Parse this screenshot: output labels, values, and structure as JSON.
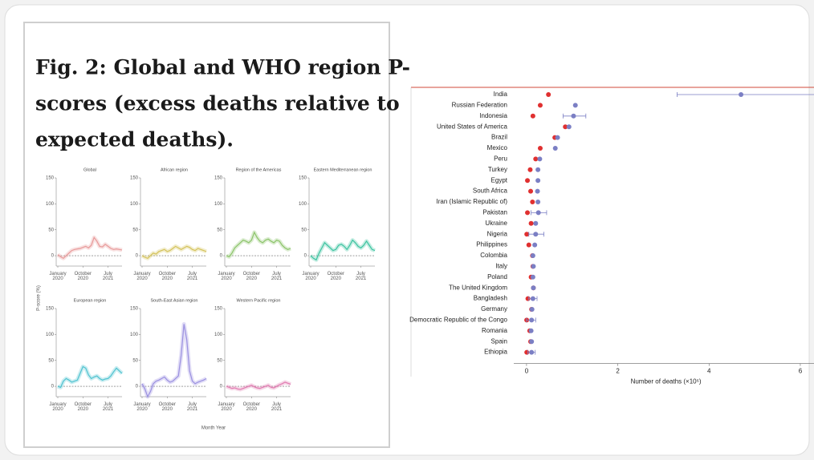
{
  "figure_title": [
    "Fig. 2: Global and WHO region P-",
    "scores (excess deaths relative to",
    "expected deaths)."
  ],
  "figure_ylabel": "P-score (%)",
  "figure_xlabel": "Month Year",
  "chart_data": [
    {
      "type": "line",
      "title": "Global",
      "color": "#e89a9a",
      "x": [
        "2020-01",
        "2020-02",
        "2020-03",
        "2020-04",
        "2020-05",
        "2020-06",
        "2020-07",
        "2020-08",
        "2020-09",
        "2020-10",
        "2020-11",
        "2020-12",
        "2021-01",
        "2021-02",
        "2021-03",
        "2021-04",
        "2021-05",
        "2021-06",
        "2021-07",
        "2021-08",
        "2021-09",
        "2021-10",
        "2021-11",
        "2021-12"
      ],
      "values": [
        2,
        -2,
        -5,
        0,
        5,
        10,
        12,
        13,
        14,
        16,
        18,
        15,
        20,
        35,
        28,
        18,
        17,
        22,
        18,
        14,
        12,
        13,
        12,
        11
      ],
      "ylim": [
        -20,
        150
      ],
      "yticks": [
        0,
        50,
        100,
        150
      ],
      "xticks": [
        {
          "value": "2020-01",
          "label": "January 2020"
        },
        {
          "value": "2020-10",
          "label": "October 2020"
        },
        {
          "value": "2021-07",
          "label": "July 2021"
        }
      ]
    },
    {
      "type": "line",
      "title": "African region",
      "color": "#d4c25a",
      "x": [
        "2020-01",
        "2020-02",
        "2020-03",
        "2020-04",
        "2020-05",
        "2020-06",
        "2020-07",
        "2020-08",
        "2020-09",
        "2020-10",
        "2020-11",
        "2020-12",
        "2021-01",
        "2021-02",
        "2021-03",
        "2021-04",
        "2021-05",
        "2021-06",
        "2021-07",
        "2021-08",
        "2021-09",
        "2021-10",
        "2021-11",
        "2021-12"
      ],
      "values": [
        0,
        -3,
        -5,
        0,
        5,
        3,
        8,
        10,
        12,
        8,
        10,
        14,
        18,
        15,
        12,
        15,
        18,
        16,
        12,
        10,
        14,
        12,
        10,
        8
      ],
      "ylim": [
        -20,
        150
      ],
      "yticks": [
        0,
        50,
        100,
        150
      ],
      "xticks": [
        {
          "value": "2020-01",
          "label": "January 2020"
        },
        {
          "value": "2020-10",
          "label": "October 2020"
        },
        {
          "value": "2021-07",
          "label": "July 2021"
        }
      ]
    },
    {
      "type": "line",
      "title": "Region of the Americas",
      "color": "#8cc46a",
      "x": [
        "2020-01",
        "2020-02",
        "2020-03",
        "2020-04",
        "2020-05",
        "2020-06",
        "2020-07",
        "2020-08",
        "2020-09",
        "2020-10",
        "2020-11",
        "2020-12",
        "2021-01",
        "2021-02",
        "2021-03",
        "2021-04",
        "2021-05",
        "2021-06",
        "2021-07",
        "2021-08",
        "2021-09",
        "2021-10",
        "2021-11",
        "2021-12"
      ],
      "values": [
        0,
        -2,
        5,
        15,
        20,
        25,
        30,
        28,
        25,
        30,
        45,
        35,
        28,
        25,
        30,
        32,
        28,
        25,
        30,
        28,
        20,
        15,
        12,
        14
      ],
      "ylim": [
        -20,
        150
      ],
      "yticks": [
        0,
        50,
        100,
        150
      ],
      "xticks": [
        {
          "value": "2020-01",
          "label": "January 2020"
        },
        {
          "value": "2020-10",
          "label": "October 2020"
        },
        {
          "value": "2021-07",
          "label": "July 2021"
        }
      ]
    },
    {
      "type": "line",
      "title": "Eastern Mediterranean region",
      "color": "#3cc3a0",
      "x": [
        "2020-01",
        "2020-02",
        "2020-03",
        "2020-04",
        "2020-05",
        "2020-06",
        "2020-07",
        "2020-08",
        "2020-09",
        "2020-10",
        "2020-11",
        "2020-12",
        "2021-01",
        "2021-02",
        "2021-03",
        "2021-04",
        "2021-05",
        "2021-06",
        "2021-07",
        "2021-08",
        "2021-09",
        "2021-10",
        "2021-11",
        "2021-12"
      ],
      "values": [
        0,
        -5,
        -8,
        5,
        15,
        25,
        20,
        15,
        10,
        12,
        20,
        22,
        18,
        12,
        20,
        30,
        25,
        18,
        15,
        20,
        28,
        20,
        12,
        10
      ],
      "ylim": [
        -20,
        150
      ],
      "yticks": [
        0,
        50,
        100,
        150
      ],
      "xticks": [
        {
          "value": "2020-01",
          "label": "January 2020"
        },
        {
          "value": "2020-10",
          "label": "October 2020"
        },
        {
          "value": "2021-07",
          "label": "July 2021"
        }
      ]
    },
    {
      "type": "line",
      "title": "European region",
      "color": "#4fc3d0",
      "x": [
        "2020-01",
        "2020-02",
        "2020-03",
        "2020-04",
        "2020-05",
        "2020-06",
        "2020-07",
        "2020-08",
        "2020-09",
        "2020-10",
        "2020-11",
        "2020-12",
        "2021-01",
        "2021-02",
        "2021-03",
        "2021-04",
        "2021-05",
        "2021-06",
        "2021-07",
        "2021-08",
        "2021-09",
        "2021-10",
        "2021-11",
        "2021-12"
      ],
      "values": [
        0,
        -2,
        10,
        15,
        12,
        8,
        10,
        12,
        25,
        38,
        35,
        22,
        15,
        18,
        20,
        15,
        12,
        14,
        15,
        20,
        28,
        35,
        30,
        25
      ],
      "ylim": [
        -20,
        150
      ],
      "yticks": [
        0,
        50,
        100,
        150
      ],
      "xticks": [
        {
          "value": "2020-01",
          "label": "January 2020"
        },
        {
          "value": "2020-10",
          "label": "October 2020"
        },
        {
          "value": "2021-07",
          "label": "July 2021"
        }
      ]
    },
    {
      "type": "line",
      "title": "South-East Asian region",
      "color": "#9a90e0",
      "x": [
        "2020-01",
        "2020-02",
        "2020-03",
        "2020-04",
        "2020-05",
        "2020-06",
        "2020-07",
        "2020-08",
        "2020-09",
        "2020-10",
        "2020-11",
        "2020-12",
        "2021-01",
        "2021-02",
        "2021-03",
        "2021-04",
        "2021-05",
        "2021-06",
        "2021-07",
        "2021-08",
        "2021-09",
        "2021-10",
        "2021-11",
        "2021-12"
      ],
      "values": [
        5,
        -5,
        -20,
        -10,
        5,
        10,
        12,
        15,
        18,
        12,
        8,
        10,
        15,
        20,
        60,
        120,
        90,
        30,
        10,
        5,
        8,
        10,
        12,
        15
      ],
      "ylim": [
        -20,
        150
      ],
      "yticks": [
        0,
        50,
        100,
        150
      ],
      "xticks": [
        {
          "value": "2020-01",
          "label": "January 2020"
        },
        {
          "value": "2020-10",
          "label": "October 2020"
        },
        {
          "value": "2021-07",
          "label": "July 2021"
        }
      ]
    },
    {
      "type": "line",
      "title": "Western Pacific region",
      "color": "#e07ab0",
      "x": [
        "2020-01",
        "2020-02",
        "2020-03",
        "2020-04",
        "2020-05",
        "2020-06",
        "2020-07",
        "2020-08",
        "2020-09",
        "2020-10",
        "2020-11",
        "2020-12",
        "2021-01",
        "2021-02",
        "2021-03",
        "2021-04",
        "2021-05",
        "2021-06",
        "2021-07",
        "2021-08",
        "2021-09",
        "2021-10",
        "2021-11",
        "2021-12"
      ],
      "values": [
        0,
        -2,
        -4,
        -3,
        -5,
        -6,
        -4,
        -2,
        0,
        2,
        -1,
        -3,
        -4,
        -2,
        0,
        2,
        -2,
        -3,
        0,
        3,
        5,
        8,
        6,
        4
      ],
      "ylim": [
        -20,
        150
      ],
      "yticks": [
        0,
        50,
        100,
        150
      ],
      "xticks": [
        {
          "value": "2020-01",
          "label": "January 2020"
        },
        {
          "value": "2020-10",
          "label": "October 2020"
        },
        {
          "value": "2021-07",
          "label": "July 2021"
        }
      ]
    },
    {
      "type": "dot",
      "categories": [
        "India",
        "Russian Federation",
        "Indonesia",
        "United States of America",
        "Brazil",
        "Mexico",
        "Peru",
        "Turkey",
        "Egypt",
        "South Africa",
        "Iran (Islamic Republic of)",
        "Pakistan",
        "Ukraine",
        "Nigeria",
        "Philippines",
        "Colombia",
        "Italy",
        "Poland",
        "The United Kingdom",
        "Bangladesh",
        "Germany",
        "Democratic Republic of the Congo",
        "Romania",
        "Spain",
        "Ethiopia"
      ],
      "series": [
        {
          "color": "#e03030",
          "values": [
            0.48,
            0.3,
            0.14,
            0.85,
            0.62,
            0.3,
            0.2,
            0.08,
            0.02,
            0.09,
            0.13,
            0.02,
            0.1,
            0.005,
            0.05,
            0.13,
            0.14,
            0.1,
            0.15,
            0.03,
            0.11,
            0.003,
            0.07,
            0.09,
            0.005
          ]
        },
        {
          "color": "#7b7fc4",
          "values": [
            4.7,
            1.07,
            1.03,
            0.93,
            0.68,
            0.63,
            0.29,
            0.25,
            0.25,
            0.24,
            0.25,
            0.26,
            0.2,
            0.2,
            0.18,
            0.14,
            0.15,
            0.14,
            0.15,
            0.14,
            0.12,
            0.11,
            0.1,
            0.11,
            0.11
          ],
          "error_low": [
            3.3,
            null,
            0.8,
            null,
            null,
            null,
            null,
            null,
            null,
            null,
            null,
            0.1,
            null,
            0.05,
            null,
            null,
            null,
            null,
            null,
            0.05,
            null,
            0.0,
            null,
            null,
            0.03
          ],
          "error_high": [
            6.5,
            null,
            1.3,
            null,
            null,
            null,
            null,
            null,
            null,
            null,
            null,
            0.44,
            null,
            0.38,
            null,
            null,
            null,
            null,
            null,
            0.23,
            null,
            0.2,
            null,
            null,
            0.19
          ]
        }
      ],
      "xlabel": "Number of deaths (×10⁶)",
      "xlim": [
        -0.28,
        6.3
      ],
      "xticks": [
        0,
        2,
        4,
        6
      ]
    }
  ]
}
